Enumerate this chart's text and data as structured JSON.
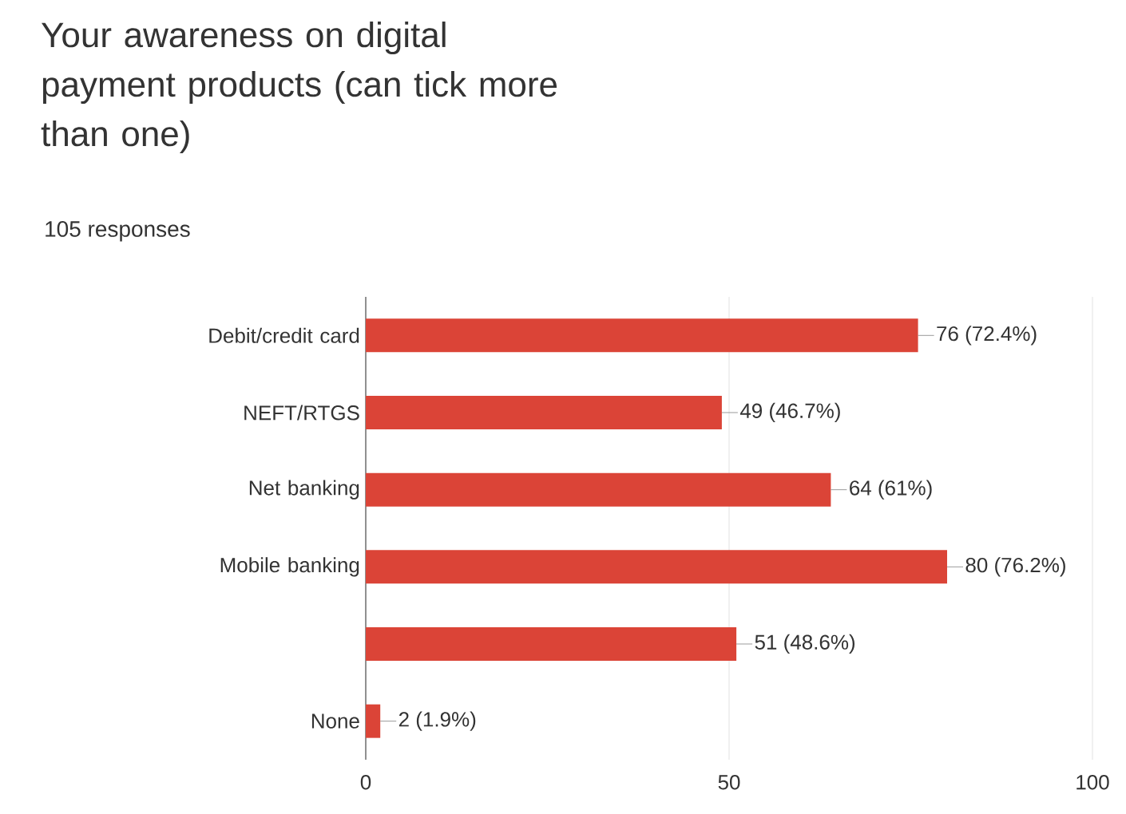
{
  "chart_data": {
    "type": "bar",
    "orientation": "horizontal",
    "title": "Your awareness on digital payment products (can tick more than one)",
    "subtitle": "105 responses",
    "categories": [
      "Debit/credit card",
      "NEFT/RTGS",
      "Net banking",
      "Mobile banking",
      null,
      "None"
    ],
    "values": [
      76,
      49,
      64,
      80,
      51,
      2
    ],
    "value_labels": [
      "76 (72.4%)",
      "49 (46.7%)",
      "64 (61%)",
      "80 (76.2%)",
      "51 (48.6%)",
      "2 (1.9%)"
    ],
    "color": "#db4437",
    "xlim": [
      0,
      100
    ],
    "xticks": [
      0,
      50,
      100
    ],
    "grid": "x"
  }
}
